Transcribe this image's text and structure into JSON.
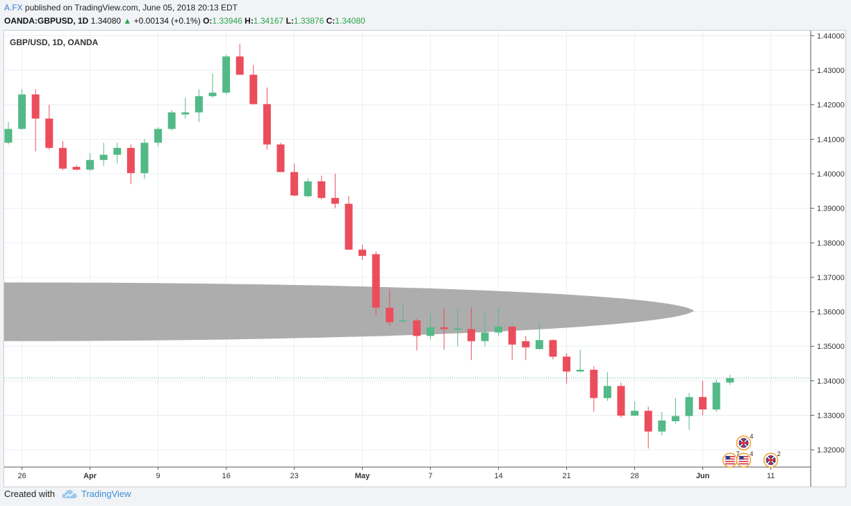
{
  "header": {
    "author": "A.FX",
    "published": "published on TradingView.com, June 05, 2018 20:13 EDT",
    "symbol": "OANDA:GBPUSD, 1D",
    "last": "1.34080",
    "arrow": "▲",
    "change": "+0.00134 (+0.1%)",
    "o_label": "O:",
    "o_value": "1.33946",
    "h_label": "H:",
    "h_value": "1.34167",
    "l_label": "L:",
    "l_value": "1.33876",
    "c_label": "C:",
    "c_value": "1.34080"
  },
  "footer": {
    "created_with": "Created with",
    "brand": "TradingView"
  },
  "colors": {
    "up": "#53b987",
    "down": "#eb4d5c",
    "grid": "#e9eef2",
    "axis_text": "#333333",
    "last_price_line": "#53b987",
    "ellipse_fill": "#a9a9a9"
  },
  "chart_data": {
    "type": "candlestick",
    "title": "GBP/USD, 1D, OANDA",
    "ylim": [
      1.315,
      1.4415
    ],
    "y_ticks": [
      "1.44000",
      "1.43000",
      "1.42000",
      "1.41000",
      "1.40000",
      "1.39000",
      "1.38000",
      "1.37000",
      "1.36000",
      "1.35000",
      "1.34000",
      "1.33000",
      "1.32000"
    ],
    "x_ticks": [
      {
        "label": "26",
        "index": 1
      },
      {
        "label": "Apr",
        "index": 6
      },
      {
        "label": "9",
        "index": 11
      },
      {
        "label": "16",
        "index": 16
      },
      {
        "label": "23",
        "index": 21
      },
      {
        "label": "May",
        "index": 26
      },
      {
        "label": "7",
        "index": 31
      },
      {
        "label": "14",
        "index": 36
      },
      {
        "label": "21",
        "index": 41
      },
      {
        "label": "28",
        "index": 46
      },
      {
        "label": "Jun",
        "index": 51
      },
      {
        "label": "11",
        "index": 56
      }
    ],
    "last_price": 1.3408,
    "candles": [
      {
        "o": 1.409,
        "h": 1.415,
        "l": 1.4085,
        "c": 1.413
      },
      {
        "o": 1.413,
        "h": 1.4245,
        "l": 1.4128,
        "c": 1.423
      },
      {
        "o": 1.423,
        "h": 1.4245,
        "l": 1.4065,
        "c": 1.416
      },
      {
        "o": 1.416,
        "h": 1.42,
        "l": 1.407,
        "c": 1.4075
      },
      {
        "o": 1.4075,
        "h": 1.4095,
        "l": 1.401,
        "c": 1.4015
      },
      {
        "o": 1.402,
        "h": 1.4025,
        "l": 1.401,
        "c": 1.4012
      },
      {
        "o": 1.4012,
        "h": 1.406,
        "l": 1.4008,
        "c": 1.404
      },
      {
        "o": 1.404,
        "h": 1.409,
        "l": 1.4023,
        "c": 1.4055
      },
      {
        "o": 1.4055,
        "h": 1.409,
        "l": 1.403,
        "c": 1.4075
      },
      {
        "o": 1.4075,
        "h": 1.4085,
        "l": 1.397,
        "c": 1.4002
      },
      {
        "o": 1.4002,
        "h": 1.41,
        "l": 1.3985,
        "c": 1.409
      },
      {
        "o": 1.409,
        "h": 1.4135,
        "l": 1.408,
        "c": 1.413
      },
      {
        "o": 1.413,
        "h": 1.4185,
        "l": 1.4125,
        "c": 1.4178
      },
      {
        "o": 1.4172,
        "h": 1.422,
        "l": 1.416,
        "c": 1.4178
      },
      {
        "o": 1.4178,
        "h": 1.4245,
        "l": 1.415,
        "c": 1.4225
      },
      {
        "o": 1.4225,
        "h": 1.429,
        "l": 1.422,
        "c": 1.4235
      },
      {
        "o": 1.4235,
        "h": 1.4345,
        "l": 1.423,
        "c": 1.434
      },
      {
        "o": 1.434,
        "h": 1.4377,
        "l": 1.4287,
        "c": 1.4287
      },
      {
        "o": 1.4287,
        "h": 1.4315,
        "l": 1.42,
        "c": 1.4202
      },
      {
        "o": 1.4202,
        "h": 1.425,
        "l": 1.407,
        "c": 1.4085
      },
      {
        "o": 1.4085,
        "h": 1.409,
        "l": 1.4005,
        "c": 1.4005
      },
      {
        "o": 1.4005,
        "h": 1.403,
        "l": 1.3935,
        "c": 1.3937
      },
      {
        "o": 1.3935,
        "h": 1.3987,
        "l": 1.3932,
        "c": 1.3978
      },
      {
        "o": 1.3978,
        "h": 1.3995,
        "l": 1.3925,
        "c": 1.393
      },
      {
        "o": 1.393,
        "h": 1.4,
        "l": 1.39,
        "c": 1.3913
      },
      {
        "o": 1.3913,
        "h": 1.3935,
        "l": 1.378,
        "c": 1.378
      },
      {
        "o": 1.378,
        "h": 1.3795,
        "l": 1.375,
        "c": 1.3762
      },
      {
        "o": 1.3767,
        "h": 1.3775,
        "l": 1.359,
        "c": 1.3612
      },
      {
        "o": 1.3612,
        "h": 1.3665,
        "l": 1.356,
        "c": 1.357
      },
      {
        "o": 1.3575,
        "h": 1.3625,
        "l": 1.357,
        "c": 1.3575
      },
      {
        "o": 1.3575,
        "h": 1.358,
        "l": 1.3488,
        "c": 1.353
      },
      {
        "o": 1.353,
        "h": 1.3595,
        "l": 1.352,
        "c": 1.3555
      },
      {
        "o": 1.3555,
        "h": 1.361,
        "l": 1.349,
        "c": 1.355
      },
      {
        "o": 1.3548,
        "h": 1.361,
        "l": 1.35,
        "c": 1.3552
      },
      {
        "o": 1.355,
        "h": 1.3613,
        "l": 1.346,
        "c": 1.3515
      },
      {
        "o": 1.3515,
        "h": 1.36,
        "l": 1.35,
        "c": 1.354
      },
      {
        "o": 1.354,
        "h": 1.361,
        "l": 1.353,
        "c": 1.3557
      },
      {
        "o": 1.3557,
        "h": 1.356,
        "l": 1.346,
        "c": 1.3505
      },
      {
        "o": 1.3515,
        "h": 1.353,
        "l": 1.346,
        "c": 1.3497
      },
      {
        "o": 1.3492,
        "h": 1.357,
        "l": 1.349,
        "c": 1.3518
      },
      {
        "o": 1.3518,
        "h": 1.352,
        "l": 1.3462,
        "c": 1.347
      },
      {
        "o": 1.347,
        "h": 1.348,
        "l": 1.3392,
        "c": 1.3427
      },
      {
        "o": 1.3427,
        "h": 1.349,
        "l": 1.3425,
        "c": 1.3432
      },
      {
        "o": 1.3432,
        "h": 1.3442,
        "l": 1.331,
        "c": 1.335
      },
      {
        "o": 1.335,
        "h": 1.3425,
        "l": 1.3342,
        "c": 1.3385
      },
      {
        "o": 1.3385,
        "h": 1.3395,
        "l": 1.3293,
        "c": 1.3299
      },
      {
        "o": 1.3299,
        "h": 1.334,
        "l": 1.3298,
        "c": 1.3313
      },
      {
        "o": 1.3313,
        "h": 1.3325,
        "l": 1.3204,
        "c": 1.3253
      },
      {
        "o": 1.3253,
        "h": 1.331,
        "l": 1.3242,
        "c": 1.3285
      },
      {
        "o": 1.3283,
        "h": 1.335,
        "l": 1.3276,
        "c": 1.3298
      },
      {
        "o": 1.3298,
        "h": 1.3365,
        "l": 1.3258,
        "c": 1.3353
      },
      {
        "o": 1.3353,
        "h": 1.34,
        "l": 1.33,
        "c": 1.3317
      },
      {
        "o": 1.3317,
        "h": 1.3405,
        "l": 1.331,
        "c": 1.3395
      },
      {
        "o": 1.3395,
        "h": 1.3417,
        "l": 1.3388,
        "c": 1.3408
      }
    ],
    "events": [
      {
        "flag": "UK",
        "count": "4",
        "index": 54,
        "price": 1.322
      },
      {
        "flag": "US",
        "count": "7",
        "index": 53,
        "price": 1.317
      },
      {
        "flag": "US",
        "count": "4",
        "index": 54,
        "price": 1.317
      },
      {
        "flag": "UK",
        "count": "2",
        "index": 56,
        "price": 1.317
      }
    ]
  }
}
